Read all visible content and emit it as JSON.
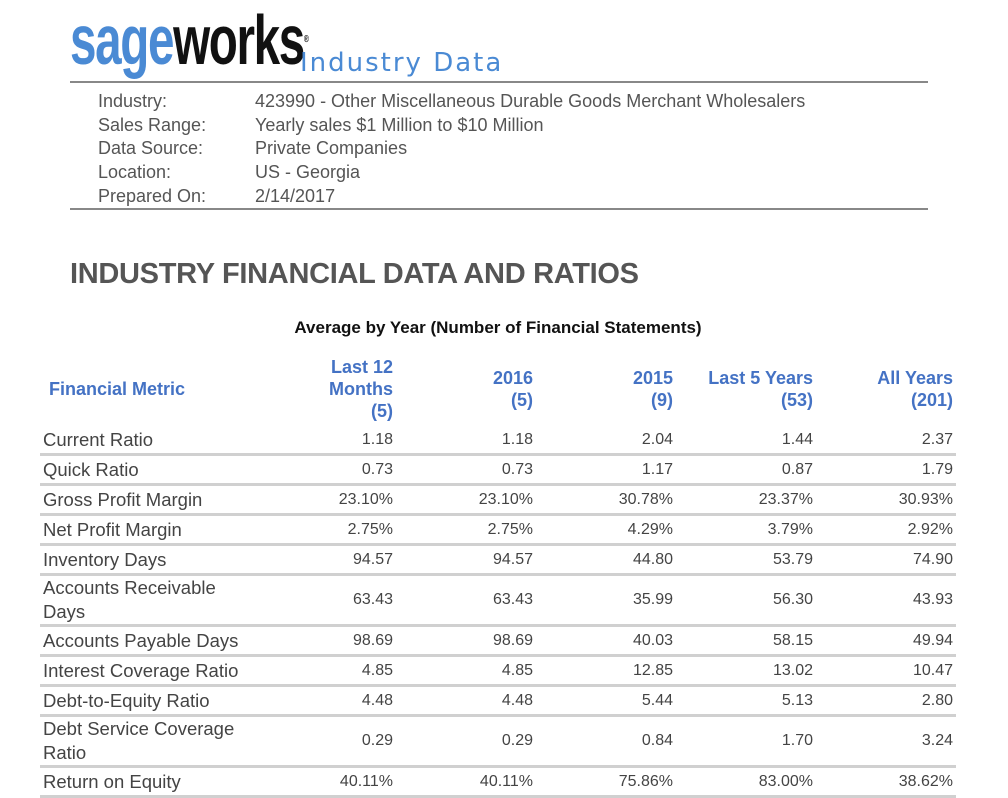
{
  "logo": {
    "part1": "sage",
    "part2": "works",
    "subtitle": "Industry Data"
  },
  "info": [
    {
      "label": "Industry:",
      "value": "423990 - Other Miscellaneous Durable Goods Merchant Wholesalers"
    },
    {
      "label": "Sales Range:",
      "value": "Yearly sales $1 Million to $10 Million"
    },
    {
      "label": "Data Source:",
      "value": "Private Companies"
    },
    {
      "label": "Location:",
      "value": "US - Georgia"
    },
    {
      "label": "Prepared On:",
      "value": "2/14/2017"
    }
  ],
  "title": "INDUSTRY FINANCIAL DATA AND RATIOS",
  "caption": "Average by Year (Number of Financial Statements)",
  "columns": [
    {
      "l1": "Financial Metric"
    },
    {
      "l1": "Last 12",
      "l2": "Months",
      "l3": "(5)"
    },
    {
      "l1": "2016",
      "l2": "(5)"
    },
    {
      "l1": "2015",
      "l2": "(9)"
    },
    {
      "l1": "Last 5 Years",
      "l2": "(53)"
    },
    {
      "l1": "All Years",
      "l2": "(201)"
    }
  ],
  "rows": [
    [
      "Current Ratio",
      "1.18",
      "1.18",
      "2.04",
      "1.44",
      "2.37"
    ],
    [
      "Quick Ratio",
      "0.73",
      "0.73",
      "1.17",
      "0.87",
      "1.79"
    ],
    [
      "Gross Profit Margin",
      "23.10%",
      "23.10%",
      "30.78%",
      "23.37%",
      "30.93%"
    ],
    [
      "Net Profit Margin",
      "2.75%",
      "2.75%",
      "4.29%",
      "3.79%",
      "2.92%"
    ],
    [
      "Inventory Days",
      "94.57",
      "94.57",
      "44.80",
      "53.79",
      "74.90"
    ],
    [
      "Accounts Receivable Days",
      "63.43",
      "63.43",
      "35.99",
      "56.30",
      "43.93"
    ],
    [
      "Accounts Payable Days",
      "98.69",
      "98.69",
      "40.03",
      "58.15",
      "49.94"
    ],
    [
      "Interest Coverage Ratio",
      "4.85",
      "4.85",
      "12.85",
      "13.02",
      "10.47"
    ],
    [
      "Debt-to-Equity Ratio",
      "4.48",
      "4.48",
      "5.44",
      "5.13",
      "2.80"
    ],
    [
      "Debt Service Coverage Ratio",
      "0.29",
      "0.29",
      "0.84",
      "1.70",
      "3.24"
    ],
    [
      "Return on Equity",
      "40.11%",
      "40.11%",
      "75.86%",
      "83.00%",
      "38.62%"
    ]
  ]
}
